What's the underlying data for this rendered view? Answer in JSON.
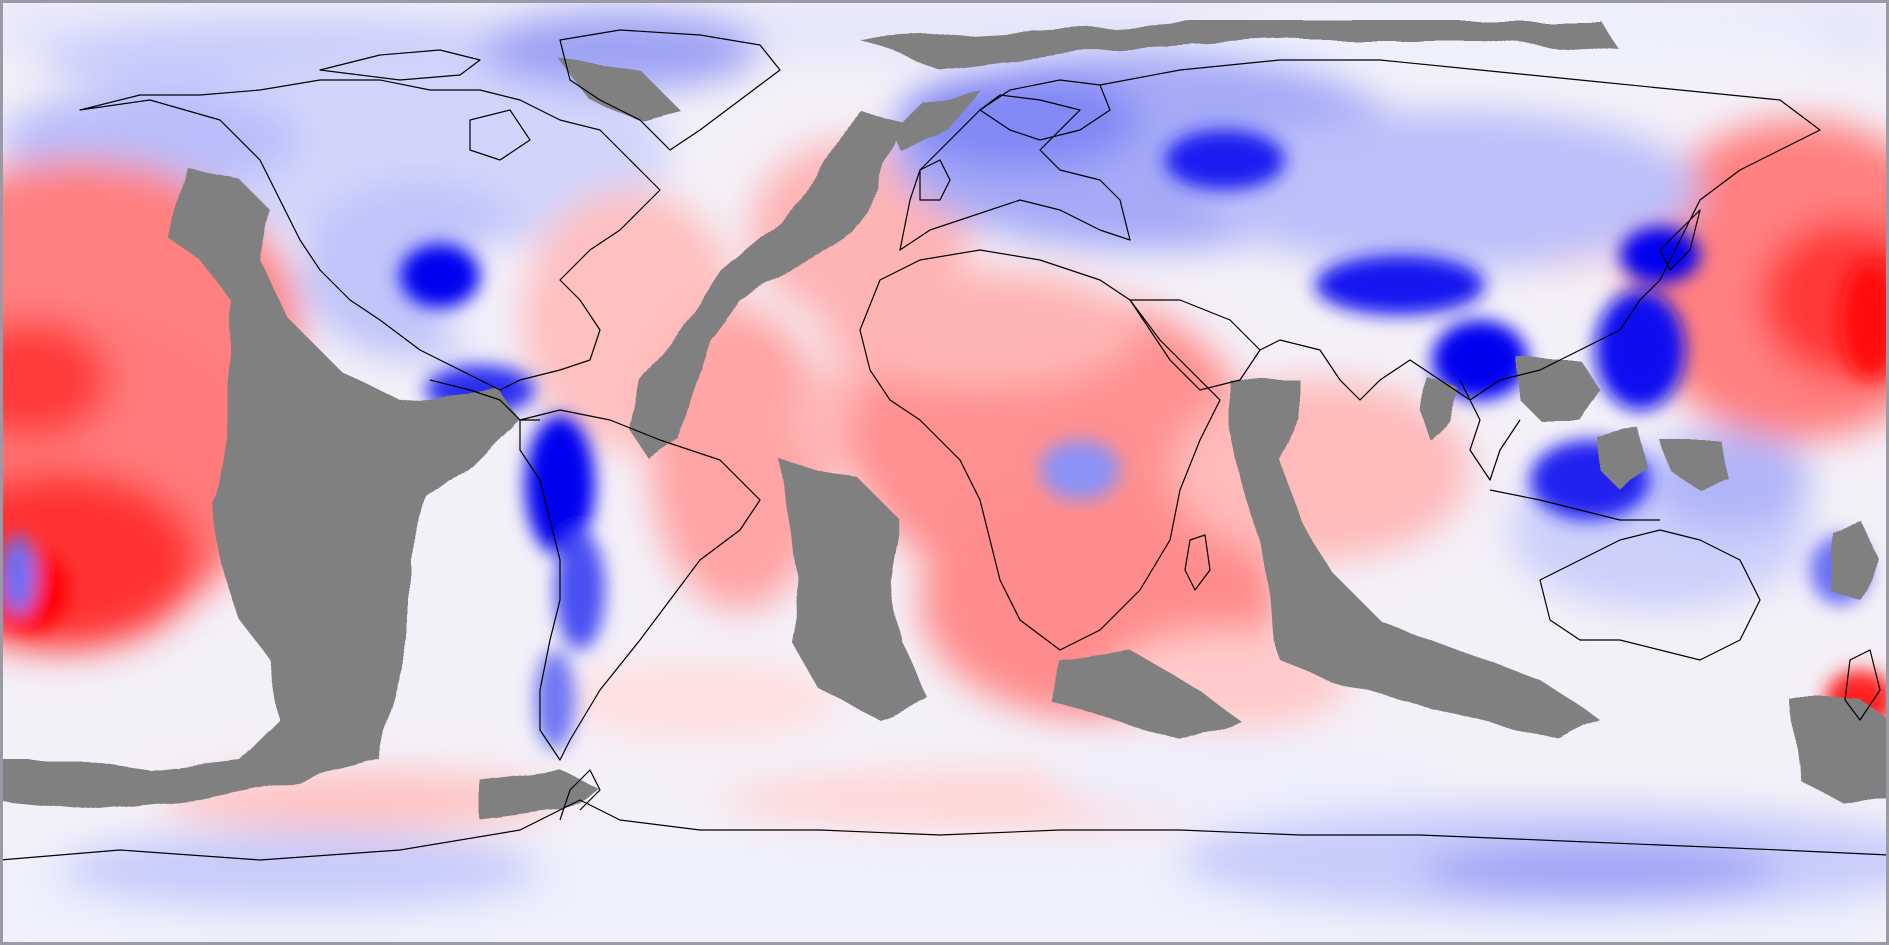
{
  "map": {
    "projection": "equirectangular",
    "extent": {
      "lon": [
        -180,
        180
      ],
      "lat": [
        -90,
        90
      ]
    },
    "colors": {
      "strong_positive": "#ff0000",
      "positive": "#ff7070",
      "weak_positive": "#ffc4c4",
      "neutral": "#f6f3fb",
      "weak_negative": "#c8ccfb",
      "negative": "#7a80f4",
      "strong_negative": "#0000f0",
      "missing": "#808080",
      "coastline": "#000000"
    },
    "layers": [
      "anomaly-field",
      "missing-data-mask",
      "coastlines"
    ]
  }
}
